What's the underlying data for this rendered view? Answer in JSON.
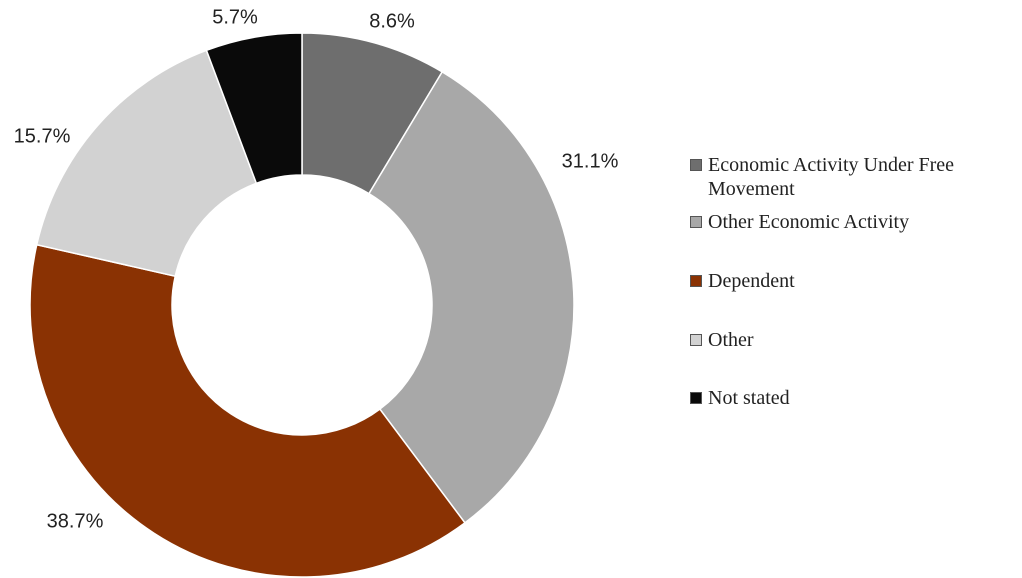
{
  "chart_data": {
    "type": "donut",
    "categories": [
      "Economic Activity Under Free Movement",
      "Other Economic Activity",
      "Dependent",
      "Other",
      "Not stated"
    ],
    "values": [
      8.6,
      31.1,
      38.7,
      15.7,
      5.7
    ],
    "value_labels": [
      "8.6%",
      "31.1%",
      "38.7%",
      "15.7%",
      "5.7%"
    ],
    "colors": [
      "#6e6e6e",
      "#a8a8a8",
      "#8a3203",
      "#d2d2d2",
      "#0a0a0a"
    ],
    "legend": "right"
  }
}
